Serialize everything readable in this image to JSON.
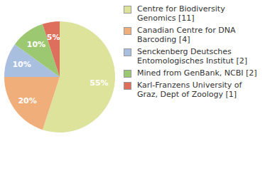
{
  "chart_data": {
    "type": "pie",
    "categories": [
      "Centre for Biodiversity Genomics [11]",
      "Canadian Centre for DNA Barcoding [4]",
      "Senckenberg Deutsches Entomologisches Institut [2]",
      "Mined from GenBank, NCBI [2]",
      "Karl-Franzens University of Graz, Dept of Zoology [1]"
    ],
    "values": [
      55,
      20,
      10,
      10,
      5
    ],
    "value_labels": [
      "55%",
      "20%",
      "10%",
      "10%",
      "5%"
    ],
    "colors": [
      "#dde39b",
      "#f0ae7a",
      "#a9bfe0",
      "#9dc872",
      "#de6f5c"
    ],
    "data_labels": true,
    "legend": "right"
  }
}
